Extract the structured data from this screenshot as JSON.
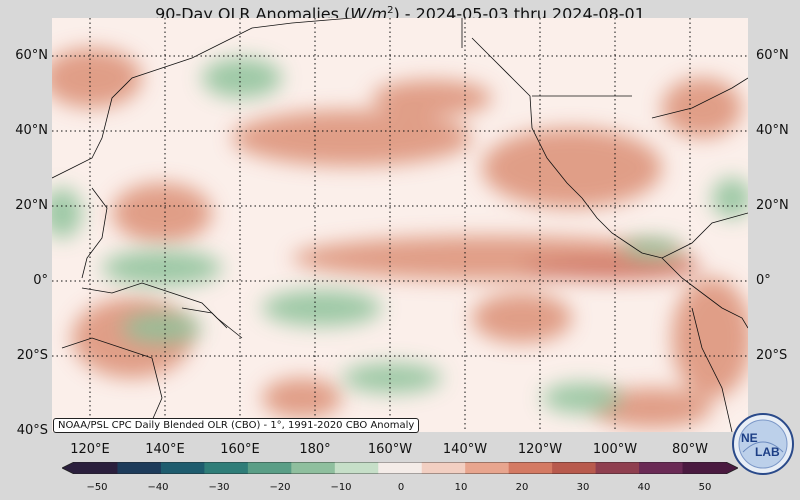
{
  "title": {
    "prefix": "90-Day OLR Anomalies (",
    "unit_italic": "W/m",
    "unit_sup": "2",
    "suffix": ") - 2024-05-03 thru 2024-08-01"
  },
  "lat_labels": [
    "60°N",
    "40°N",
    "20°N",
    "0°",
    "20°S",
    "40°S"
  ],
  "lon_labels": [
    "120°E",
    "140°E",
    "160°E",
    "180°",
    "160°W",
    "140°W",
    "120°W",
    "100°W",
    "80°W"
  ],
  "source_note": "NOAA/PSL CPC Daily Blended OLR (CBO) - 1°, 1991-2020 CBO Anomaly",
  "colorbar": {
    "ticks": [
      "−50",
      "−40",
      "−30",
      "−20",
      "−10",
      "0",
      "10",
      "20",
      "30",
      "40",
      "50"
    ],
    "colors": [
      "#2b1f3d",
      "#1d3b5a",
      "#1e5c6e",
      "#2f7d78",
      "#5a9e86",
      "#8fbf9e",
      "#c6dfc8",
      "#f4ece8",
      "#f2cfc2",
      "#e8a58e",
      "#d47a63",
      "#b85a4d",
      "#8f3f4f",
      "#6a2a55",
      "#4a1a40"
    ],
    "low_color": "#2b1f3d",
    "high_color": "#4a1a40"
  },
  "map": {
    "background_color": "#fbefea",
    "positive_color": "#d98a6e",
    "negative_color": "#7ab58a"
  },
  "logo": {
    "text_top": "NE",
    "text_bottom": "LAB"
  }
}
